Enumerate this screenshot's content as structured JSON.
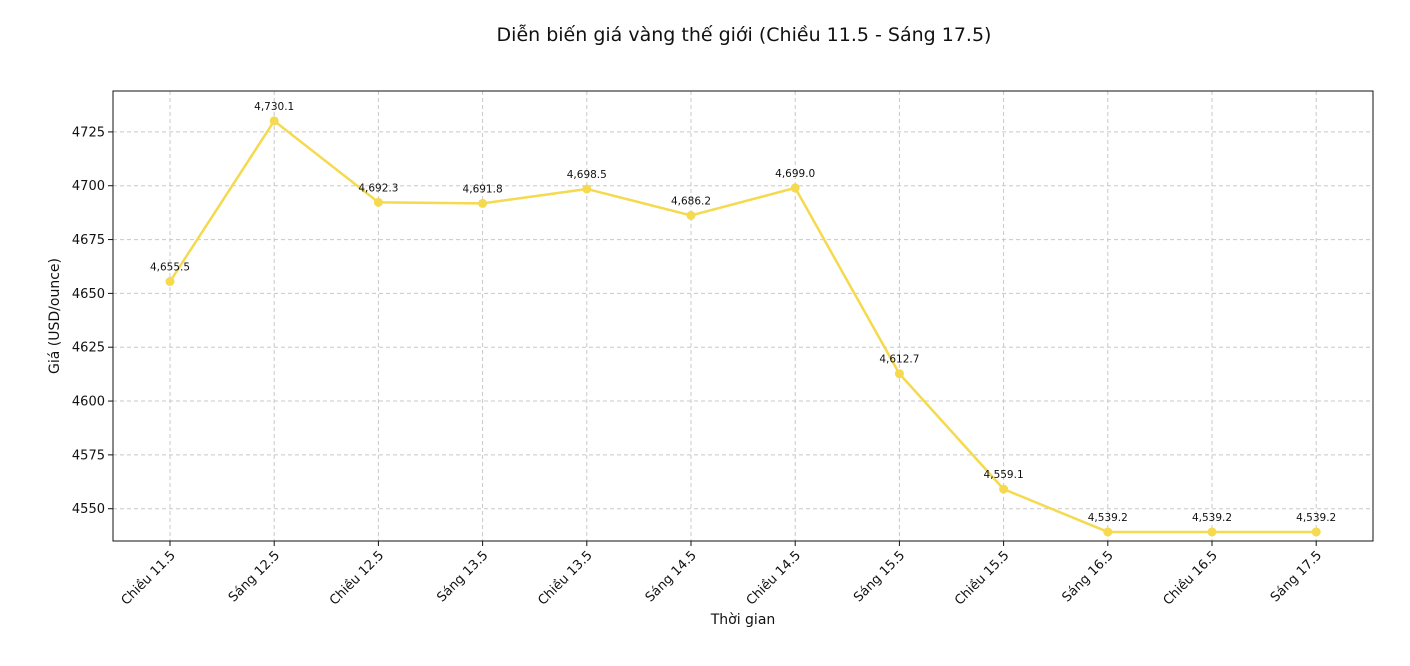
{
  "chart_data": {
    "type": "line",
    "title": "Diễn biến giá vàng thế giới (Chiều 11.5 - Sáng 17.5)",
    "xlabel": "Thời gian",
    "ylabel": "Giá (USD/ounce)",
    "categories": [
      "Chiều 11.5",
      "Sáng 12.5",
      "Chiều 12.5",
      "Sáng 13.5",
      "Chiều 13.5",
      "Sáng 14.5",
      "Chiều 14.5",
      "Sáng 15.5",
      "Chiều 15.5",
      "Sáng 16.5",
      "Chiều 16.5",
      "Sáng 17.5"
    ],
    "series": [
      {
        "values": [
          4655.5,
          4730.1,
          4692.3,
          4691.8,
          4698.5,
          4686.2,
          4699.0,
          4612.7,
          4559.1,
          4539.2,
          4539.2,
          4539.2
        ],
        "labels": [
          "4,655.5",
          "4,730.1",
          "4,692.3",
          "4,691.8",
          "4,698.5",
          "4,686.2",
          "4,699.0",
          "4,612.7",
          "4,559.1",
          "4,539.2",
          "4,539.2",
          "4,539.2"
        ],
        "color": "#f5d94e"
      }
    ],
    "yticks": [
      4550,
      4575,
      4600,
      4625,
      4650,
      4675,
      4700,
      4725
    ],
    "ylim": [
      4535,
      4744
    ],
    "grid": true,
    "legend": false
  }
}
